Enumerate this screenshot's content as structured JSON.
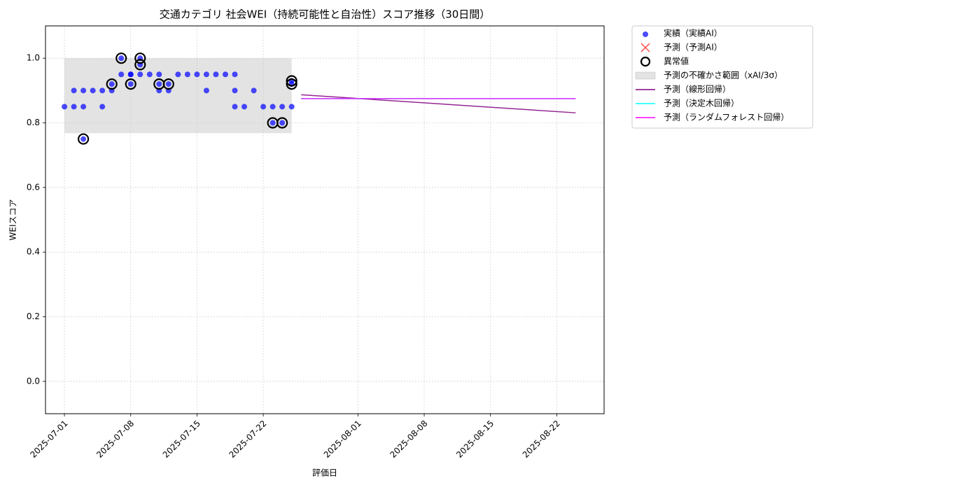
{
  "chart_data": {
    "type": "scatter",
    "title": "交通カテゴリ 社会WEI（持続可能性と自治性）スコア推移（30日間）",
    "xlabel": "評価日",
    "ylabel": "WEIスコア",
    "xlim": [
      "2025-06-29",
      "2025-08-27"
    ],
    "ylim": [
      -0.1,
      1.1
    ],
    "xticks": [
      "2025-07-01",
      "2025-07-08",
      "2025-07-15",
      "2025-07-22",
      "2025-08-01",
      "2025-08-08",
      "2025-08-15",
      "2025-08-22"
    ],
    "yticks": [
      {
        "value": 0,
        "label": "0.0"
      },
      0.2,
      0.4,
      0.6,
      0.8,
      {
        "value": 1,
        "label": "1.0"
      }
    ],
    "grid": true,
    "legend": "outside-upper-right",
    "series": [
      {
        "name": "実績（実績AI）",
        "type": "scatter",
        "marker": "dot",
        "color": "#0000ff",
        "x": [
          "2025-07-01",
          "2025-07-02",
          "2025-07-02",
          "2025-07-03",
          "2025-07-03",
          "2025-07-03",
          "2025-07-04",
          "2025-07-05",
          "2025-07-05",
          "2025-07-06",
          "2025-07-06",
          "2025-07-07",
          "2025-07-07",
          "2025-07-08",
          "2025-07-08",
          "2025-07-08",
          "2025-07-09",
          "2025-07-09",
          "2025-07-09",
          "2025-07-10",
          "2025-07-11",
          "2025-07-11",
          "2025-07-11",
          "2025-07-12",
          "2025-07-12",
          "2025-07-13",
          "2025-07-14",
          "2025-07-15",
          "2025-07-16",
          "2025-07-16",
          "2025-07-17",
          "2025-07-18",
          "2025-07-19",
          "2025-07-19",
          "2025-07-19",
          "2025-07-20",
          "2025-07-21",
          "2025-07-22",
          "2025-07-23",
          "2025-07-23",
          "2025-07-24",
          "2025-07-24",
          "2025-07-25",
          "2025-07-25",
          "2025-07-25"
        ],
        "values": [
          0.85,
          0.9,
          0.85,
          0.9,
          0.85,
          0.75,
          0.9,
          0.85,
          0.9,
          0.9,
          0.92,
          0.95,
          1.0,
          0.95,
          0.92,
          0.95,
          0.98,
          0.95,
          1.0,
          0.95,
          0.9,
          0.92,
          0.95,
          0.92,
          0.9,
          0.95,
          0.95,
          0.95,
          0.95,
          0.9,
          0.95,
          0.95,
          0.95,
          0.85,
          0.9,
          0.85,
          0.9,
          0.85,
          0.85,
          0.8,
          0.85,
          0.8,
          0.93,
          0.92,
          0.85
        ]
      },
      {
        "name": "予測（予測AI）",
        "type": "scatter",
        "marker": "x",
        "color": "#ff0000",
        "x": [],
        "values": []
      },
      {
        "name": "異常値",
        "type": "scatter",
        "marker": "ring",
        "color": "#000000",
        "x": [
          "2025-07-03",
          "2025-07-06",
          "2025-07-07",
          "2025-07-08",
          "2025-07-09",
          "2025-07-09",
          "2025-07-11",
          "2025-07-12",
          "2025-07-23",
          "2025-07-24",
          "2025-07-25",
          "2025-07-25"
        ],
        "values": [
          0.75,
          0.92,
          1.0,
          0.92,
          0.98,
          1.0,
          0.92,
          0.92,
          0.8,
          0.8,
          0.93,
          0.92
        ]
      },
      {
        "name": "予測の不確かさ範囲（xAI/3σ）",
        "type": "band",
        "color": "#c8c8c8",
        "x": [
          "2025-07-01",
          "2025-07-25"
        ],
        "lower": [
          0.768,
          0.768
        ],
        "upper": [
          1.0,
          1.0
        ]
      },
      {
        "name": "予測（線形回帰）",
        "type": "line",
        "color": "#800080",
        "x": [
          "2025-07-26",
          "2025-08-24"
        ],
        "values": [
          0.887,
          0.831
        ]
      },
      {
        "name": "予測（決定木回帰）",
        "type": "line",
        "color": "#00ffff",
        "x": [
          "2025-07-26",
          "2025-08-24"
        ],
        "values": [
          0.875,
          0.875
        ]
      },
      {
        "name": "予測（ランダムフォレスト回帰）",
        "type": "line",
        "color": "#ff00ff",
        "x": [
          "2025-07-26",
          "2025-08-24"
        ],
        "values": [
          0.875,
          0.875
        ]
      }
    ]
  }
}
